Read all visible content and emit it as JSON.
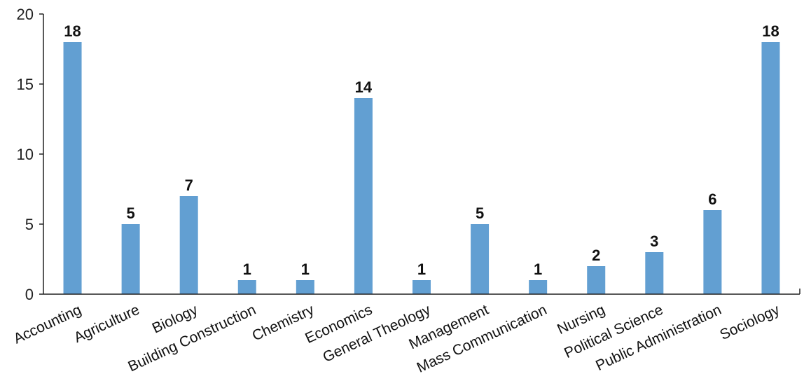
{
  "chart_data": {
    "type": "bar",
    "categories": [
      "Accounting",
      "Agriculture",
      "Biology",
      "Building Construction",
      "Chemistry",
      "Economics",
      "General Theology",
      "Management",
      "Mass Communication",
      "Nursing",
      "Political Science",
      "Public Administration",
      "Sociology"
    ],
    "values": [
      18,
      5,
      7,
      1,
      1,
      14,
      1,
      5,
      1,
      2,
      3,
      6,
      18
    ],
    "ylim": [
      0,
      20
    ],
    "yticks": [
      0,
      5,
      10,
      15,
      20
    ],
    "bar_color": "#629fd2",
    "grid": false,
    "legend": "none"
  }
}
